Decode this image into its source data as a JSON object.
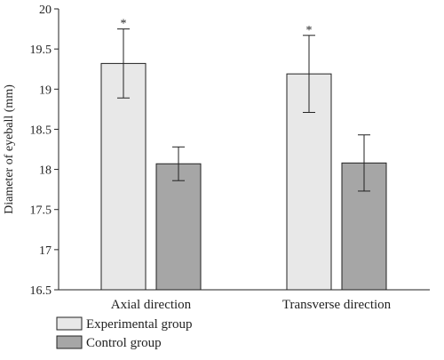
{
  "chart_data": {
    "type": "bar",
    "title": "",
    "xlabel": "",
    "ylabel": "Diameter of eyeball (mm)",
    "ylim": [
      16.5,
      20
    ],
    "yticks": [
      16.5,
      17,
      17.5,
      18,
      18.5,
      19,
      19.5,
      20
    ],
    "ytick_labels": [
      "16.5",
      "17",
      "17.5",
      "18",
      "18.5",
      "19",
      "19.5",
      "20"
    ],
    "grid": false,
    "legend_position": "bottom-left",
    "categories": [
      "Axial direction",
      "Transverse direction"
    ],
    "series": [
      {
        "name": "Experimental group",
        "color": "#e8e8e8",
        "values": [
          19.32,
          19.19
        ],
        "errors": [
          0.43,
          0.48
        ],
        "annotations": [
          "*",
          "*"
        ]
      },
      {
        "name": "Control group",
        "color": "#a6a6a6",
        "values": [
          18.07,
          18.08
        ],
        "errors": [
          0.21,
          0.35
        ],
        "annotations": [
          "",
          ""
        ]
      }
    ]
  }
}
